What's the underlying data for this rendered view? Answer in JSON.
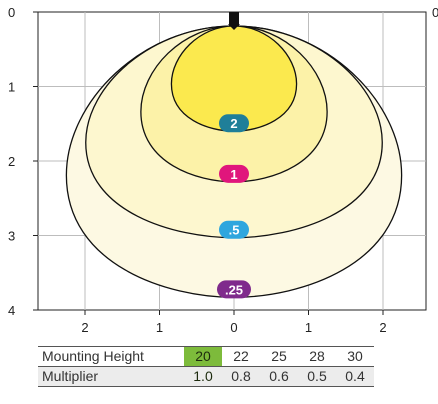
{
  "chart_data": {
    "type": "isofootcandle contour",
    "y_ticks": [
      "0",
      "1",
      "2",
      "3",
      "4"
    ],
    "x_ticks": [
      "2",
      "1",
      "0",
      "1",
      "2"
    ],
    "right_tick_partial": "0",
    "contours": [
      {
        "label": "2",
        "color": "#1f7f99",
        "fill": "#fbe94e",
        "extent_down": 1.6,
        "half_width": 0.84
      },
      {
        "label": "1",
        "color": "#e0167c",
        "fill": "#fcf2a8",
        "extent_down": 2.28,
        "half_width": 1.25
      },
      {
        "label": ".5",
        "color": "#2ea6de",
        "fill": "#fdf7cf",
        "extent_down": 3.03,
        "half_width": 1.99
      },
      {
        "label": ".25",
        "color": "#7f2b8c",
        "fill": "#fdf9e3",
        "extent_down": 3.83,
        "half_width": 2.25
      }
    ]
  },
  "table": {
    "rows": [
      {
        "label": "Mounting Height",
        "values": [
          "20",
          "22",
          "25",
          "28",
          "30"
        ]
      },
      {
        "label": "Multiplier",
        "values": [
          "1.0",
          "0.8",
          "0.6",
          "0.5",
          "0.4"
        ]
      }
    ],
    "selected_column": 0,
    "highlight_color": "#7dbb3b"
  }
}
